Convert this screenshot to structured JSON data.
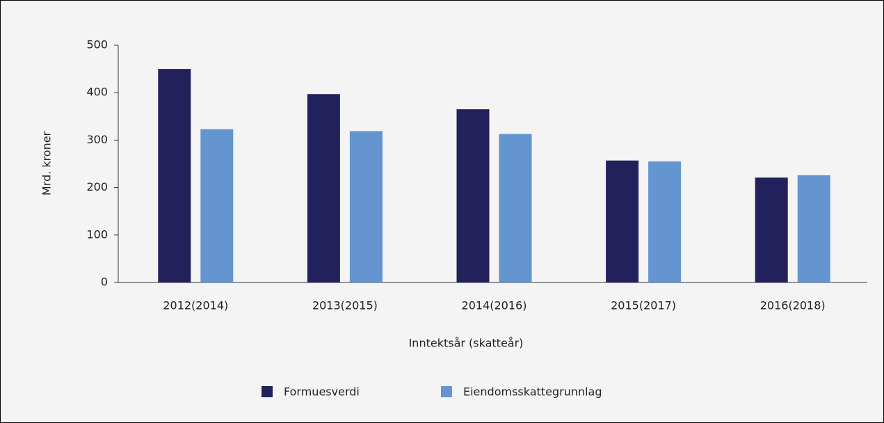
{
  "chart_data": {
    "type": "bar",
    "categories": [
      "2012(2014)",
      "2013(2015)",
      "2014(2016)",
      "2015(2017)",
      "2016(2018)"
    ],
    "series": [
      {
        "name": "Formuesverdi",
        "color": "#22215b",
        "values": [
          450,
          397,
          365,
          257,
          221
        ]
      },
      {
        "name": "Eiendomsskattegrunnlag",
        "color": "#6495d0",
        "values": [
          323,
          319,
          313,
          255,
          226
        ]
      }
    ],
    "xlabel": "Inntektsår (skatteår)",
    "ylabel": "Mrd. kroner",
    "ylim": [
      0,
      500
    ],
    "yticks": [
      0,
      100,
      200,
      300,
      400,
      500
    ],
    "grid": false,
    "legend": "bottom"
  }
}
